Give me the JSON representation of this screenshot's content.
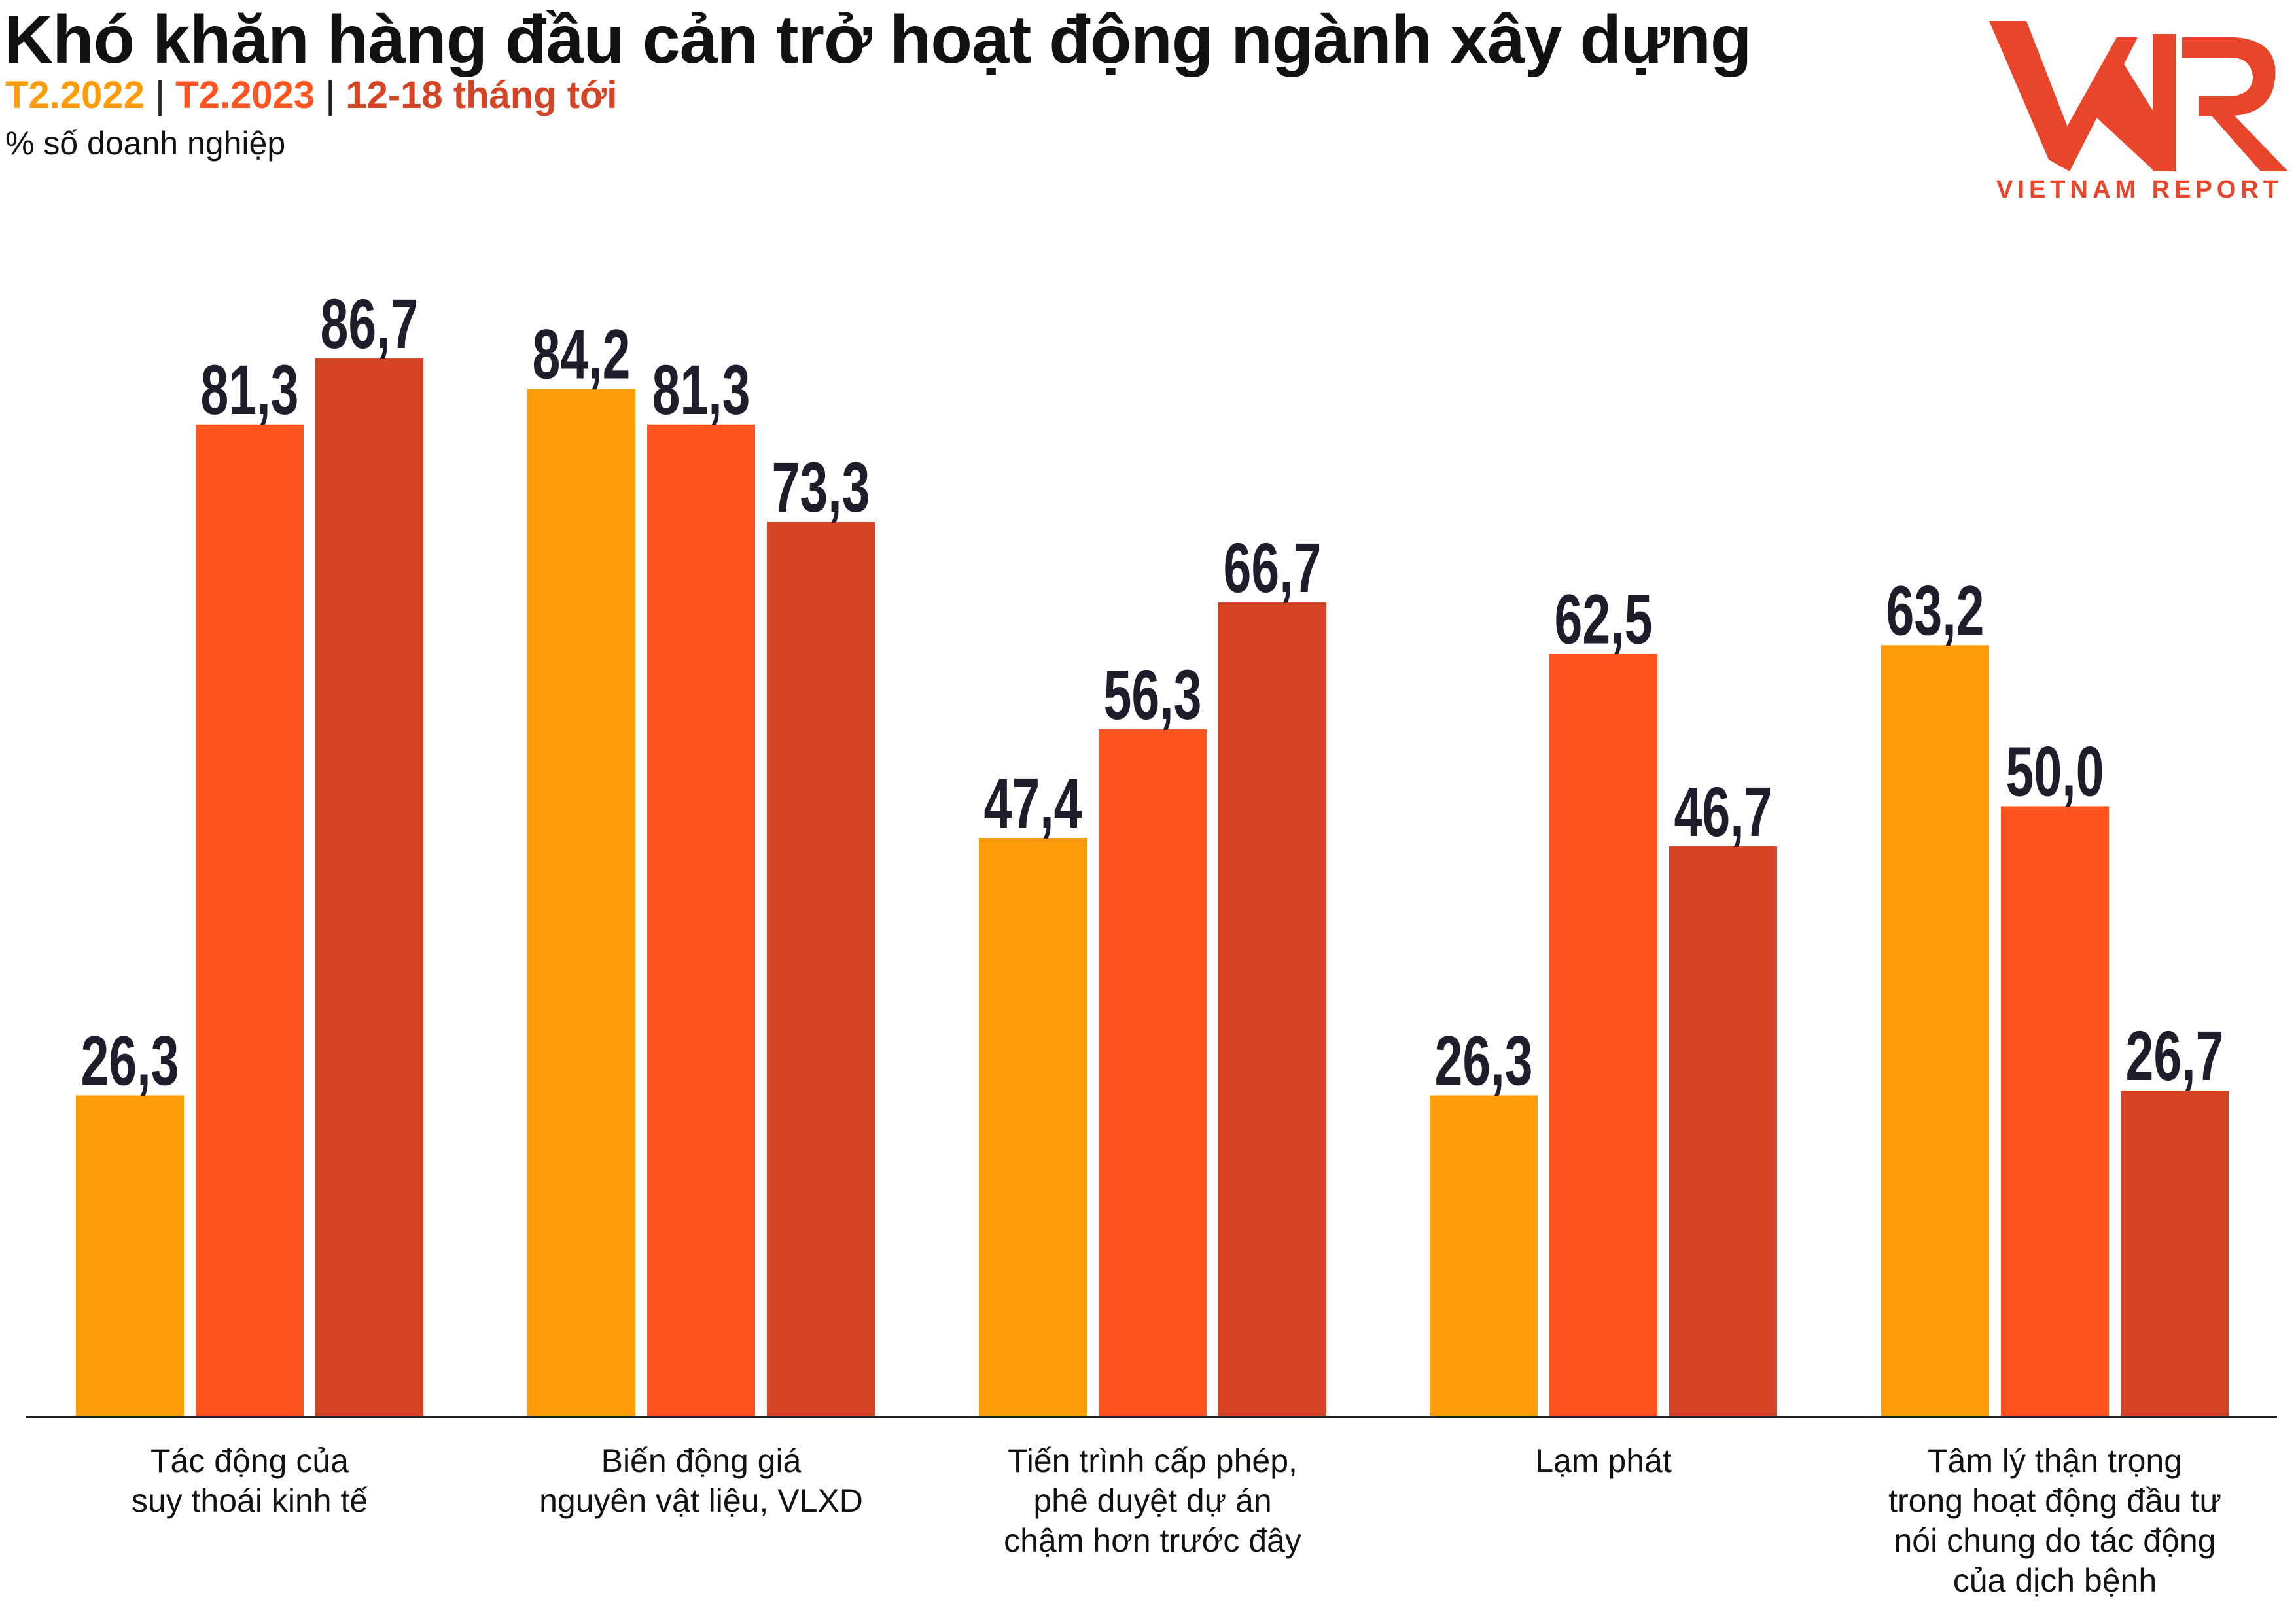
{
  "title": "Khó khăn hàng đầu cản trở hoạt động ngành xây dựng",
  "legend": [
    {
      "label": "T2.2022",
      "color": "#FF9C07"
    },
    {
      "label": "T2.2023",
      "color": "#FF5420"
    },
    {
      "label": "12-18 tháng tới",
      "color": "#D44424"
    }
  ],
  "legend_separator": "|",
  "unit_label": "% số doanh nghiệp",
  "logo": {
    "text": "VIETNAM REPORT",
    "mark": "VNR",
    "color": "#E8452B"
  },
  "chart_data": {
    "type": "bar",
    "categories": [
      [
        "Tác động của",
        "suy thoái kinh tế"
      ],
      [
        "Biến động giá",
        "nguyên vật liệu, VLXD"
      ],
      [
        "Tiến trình cấp phép,",
        "phê duyệt dự án",
        "chậm hơn trước đây"
      ],
      [
        "Lạm phát"
      ],
      [
        "Tâm lý thận trọng",
        "trong hoạt động đầu tư",
        "nói chung do tác động",
        "của dịch bệnh"
      ]
    ],
    "series": [
      {
        "name": "T2.2022",
        "values": [
          26.3,
          84.2,
          47.4,
          26.3,
          63.2
        ],
        "labels": [
          "26,3",
          "84,2",
          "47,4",
          "26,3",
          "63,2"
        ],
        "color": "#FF9C07"
      },
      {
        "name": "T2.2023",
        "values": [
          81.3,
          81.3,
          56.3,
          62.5,
          50.0
        ],
        "labels": [
          "81,3",
          "81,3",
          "56,3",
          "62,5",
          "50,0"
        ],
        "color": "#FF5420"
      },
      {
        "name": "12-18 tháng tới",
        "values": [
          86.7,
          73.3,
          66.7,
          46.7,
          26.7
        ],
        "labels": [
          "86,7",
          "73,3",
          "66,7",
          "46,7",
          "26,7"
        ],
        "color": "#D44424"
      }
    ],
    "ylim": [
      0,
      100
    ],
    "grid": false,
    "legend_position": "top-left"
  }
}
